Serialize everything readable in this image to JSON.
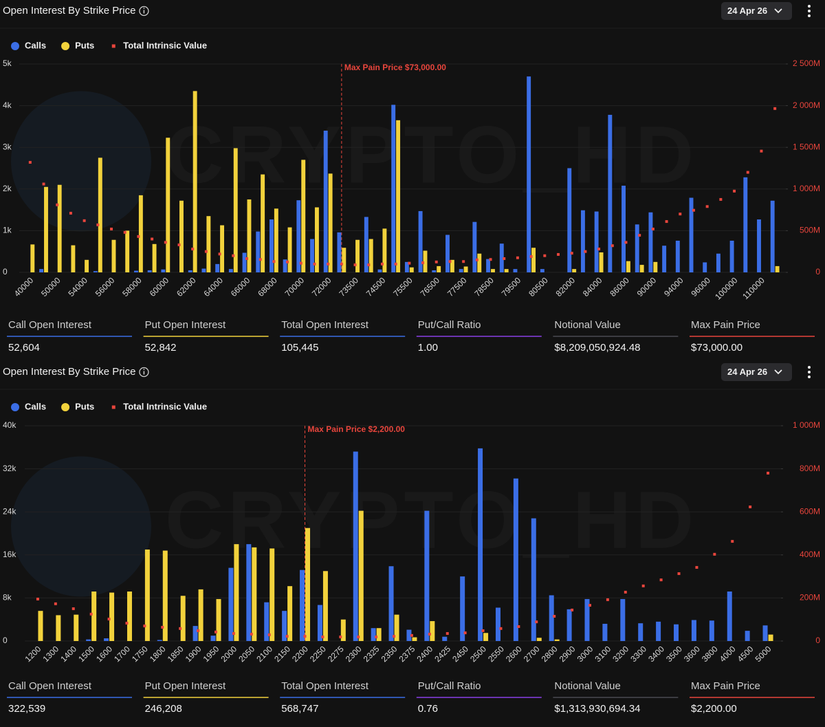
{
  "chart_data": [
    {
      "type": "bar",
      "title": "Open Interest By Strike Price",
      "date": "24 Apr 26",
      "watermark": "CRYPTO_HD",
      "annotation": "Max Pain Price $73,000.00",
      "categories": [
        "40000",
        null,
        "50000",
        null,
        "54000",
        null,
        "56000",
        null,
        "58000",
        null,
        "60000",
        null,
        "62000",
        null,
        "64000",
        null,
        "66000",
        null,
        "68000",
        null,
        "70000",
        null,
        "72000",
        null,
        "73500",
        null,
        "74500",
        null,
        "75500",
        null,
        "76500",
        null,
        "77500",
        null,
        "78500",
        null,
        "79500",
        null,
        "80500",
        null,
        "82000",
        null,
        "84000",
        null,
        "86000",
        null,
        "90000",
        null,
        "94000",
        null,
        "96000",
        null,
        "100000",
        null,
        "110000",
        null
      ],
      "series": [
        {
          "name": "Calls",
          "color": "#3b6ee6",
          "values": [
            0,
            80,
            0,
            0,
            0,
            30,
            0,
            0,
            40,
            50,
            70,
            0,
            50,
            90,
            200,
            80,
            470,
            980,
            1270,
            310,
            1730,
            800,
            3400,
            960,
            0,
            1330,
            70,
            4020,
            250,
            1470,
            50,
            900,
            80,
            1210,
            320,
            690,
            80,
            4700,
            80,
            0,
            2500,
            1490,
            1460,
            3780,
            2080,
            1150,
            1440,
            640,
            760,
            1790,
            240,
            450,
            760,
            2280,
            1270,
            1720
          ]
        },
        {
          "name": "Puts",
          "color": "#f2d23c",
          "values": [
            670,
            2050,
            2100,
            650,
            300,
            2750,
            780,
            1000,
            1850,
            680,
            3230,
            1720,
            4350,
            1350,
            1130,
            2980,
            1750,
            2350,
            1530,
            1080,
            2700,
            1560,
            2370,
            590,
            780,
            800,
            1050,
            3650,
            120,
            520,
            150,
            300,
            140,
            450,
            80,
            80,
            0,
            590,
            0,
            0,
            80,
            0,
            480,
            0,
            270,
            180,
            250,
            0,
            0,
            0,
            0,
            0,
            0,
            0,
            0,
            150
          ]
        },
        {
          "name": "Total Intrinsic Value",
          "color": "#e8453c",
          "axis": "y2",
          "mark": "dot",
          "values": [
            1320,
            1060,
            810,
            710,
            620,
            570,
            520,
            480,
            430,
            400,
            360,
            330,
            280,
            250,
            220,
            200,
            165,
            155,
            130,
            125,
            110,
            100,
            100,
            100,
            90,
            90,
            100,
            100,
            110,
            115,
            125,
            130,
            130,
            150,
            155,
            165,
            175,
            190,
            200,
            215,
            230,
            250,
            280,
            320,
            360,
            445,
            520,
            610,
            700,
            745,
            790,
            875,
            975,
            1200,
            1455,
            1965
          ]
        }
      ],
      "ylim": [
        0,
        5000
      ],
      "yticks": [
        0,
        {
          "value": 1000,
          "label": "1k"
        },
        {
          "value": 2000,
          "label": "2k"
        },
        {
          "value": 3000,
          "label": "3k"
        },
        {
          "value": 4000,
          "label": "4k"
        },
        {
          "value": 5000,
          "label": "5k"
        }
      ],
      "y2lim": [
        0,
        2500
      ],
      "y2ticks": [
        0,
        {
          "value": 500,
          "label": "500M"
        },
        {
          "value": 1000,
          "label": "1 000M"
        },
        {
          "value": 1500,
          "label": "1 500M"
        },
        {
          "value": 2000,
          "label": "2 000M"
        },
        {
          "value": 2500,
          "label": "2 500M"
        }
      ],
      "grid": true,
      "stats": [
        {
          "label": "Call Open Interest",
          "value": "52,604",
          "color": "#3b6ee6"
        },
        {
          "label": "Put Open Interest",
          "value": "52,842",
          "color": "#f2d23c"
        },
        {
          "label": "Total Open Interest",
          "value": "105,445",
          "color": "#3b6ee6"
        },
        {
          "label": "Put/Call Ratio",
          "value": "1.00",
          "color": "#8a3fe6"
        },
        {
          "label": "Notional Value",
          "value": "$8,209,050,924.48",
          "color": "#4a4a52"
        },
        {
          "label": "Max Pain Price",
          "value": "$73,000.00",
          "color": "#e8453c"
        }
      ]
    },
    {
      "type": "bar",
      "title": "Open Interest By Strike Price",
      "date": "24 Apr 26",
      "watermark": "CRYPTO_HD",
      "annotation": "Max Pain Price $2,200.00",
      "categories": [
        "1200",
        "1300",
        "1400",
        "1500",
        "1600",
        "1700",
        "1750",
        "1800",
        "1850",
        "1900",
        "1950",
        "2000",
        "2050",
        "2100",
        "2150",
        "2200",
        "2250",
        "2275",
        "2300",
        "2325",
        "2350",
        "2375",
        "2400",
        "2425",
        "2450",
        "2500",
        "2550",
        "2600",
        "2700",
        "2800",
        "2900",
        "3000",
        "3100",
        "3200",
        "3300",
        "3400",
        "3500",
        "3600",
        "3800",
        "4000",
        "4500",
        "5000"
      ],
      "series": [
        {
          "name": "Calls",
          "color": "#3b6ee6",
          "values": [
            0,
            0,
            0,
            300,
            500,
            0,
            0,
            200,
            0,
            2800,
            1000,
            13600,
            18000,
            7200,
            5600,
            13200,
            6700,
            0,
            35200,
            2400,
            13900,
            2100,
            24200,
            800,
            12000,
            35800,
            6200,
            30200,
            22800,
            8500,
            5900,
            7800,
            3200,
            7800,
            3300,
            3600,
            3100,
            3900,
            3800,
            9200,
            1900,
            2900
          ]
        },
        {
          "name": "Puts",
          "color": "#f2d23c",
          "values": [
            5600,
            4800,
            4900,
            9200,
            9000,
            9200,
            17000,
            16800,
            8400,
            9600,
            7800,
            18000,
            17400,
            17200,
            10200,
            21000,
            13000,
            4000,
            24200,
            2400,
            4900,
            700,
            3700,
            0,
            0,
            1500,
            0,
            0,
            600,
            300,
            0,
            0,
            0,
            0,
            0,
            0,
            0,
            0,
            0,
            0,
            0,
            1200
          ]
        },
        {
          "name": "Total Intrinsic Value",
          "color": "#e8453c",
          "axis": "y2",
          "mark": "dot",
          "values": [
            195,
            173,
            150,
            125,
            102,
            83,
            70,
            64,
            58,
            48,
            42,
            35,
            32,
            29,
            22,
            22,
            19,
            19,
            19,
            19,
            22,
            26,
            32,
            35,
            38,
            48,
            58,
            67,
            89,
            115,
            144,
            166,
            192,
            227,
            256,
            284,
            313,
            342,
            403,
            463,
            623,
            780
          ]
        }
      ],
      "ylim": [
        0,
        40000
      ],
      "yticks": [
        0,
        {
          "value": 8000,
          "label": "8k"
        },
        {
          "value": 16000,
          "label": "16k"
        },
        {
          "value": 24000,
          "label": "24k"
        },
        {
          "value": 32000,
          "label": "32k"
        },
        {
          "value": 40000,
          "label": "40k"
        }
      ],
      "y2lim": [
        0,
        1000
      ],
      "y2ticks": [
        0,
        {
          "value": 200,
          "label": "200M"
        },
        {
          "value": 400,
          "label": "400M"
        },
        {
          "value": 600,
          "label": "600M"
        },
        {
          "value": 800,
          "label": "800M"
        },
        {
          "value": 1000,
          "label": "1 000M"
        }
      ],
      "grid": true,
      "stats": [
        {
          "label": "Call Open Interest",
          "value": "322,539",
          "color": "#3b6ee6"
        },
        {
          "label": "Put Open Interest",
          "value": "246,208",
          "color": "#f2d23c"
        },
        {
          "label": "Total Open Interest",
          "value": "568,747",
          "color": "#3b6ee6"
        },
        {
          "label": "Put/Call Ratio",
          "value": "0.76",
          "color": "#8a3fe6"
        },
        {
          "label": "Notional Value",
          "value": "$1,313,930,694.34",
          "color": "#4a4a52"
        },
        {
          "label": "Max Pain Price",
          "value": "$2,200.00",
          "color": "#e8453c"
        }
      ]
    }
  ]
}
